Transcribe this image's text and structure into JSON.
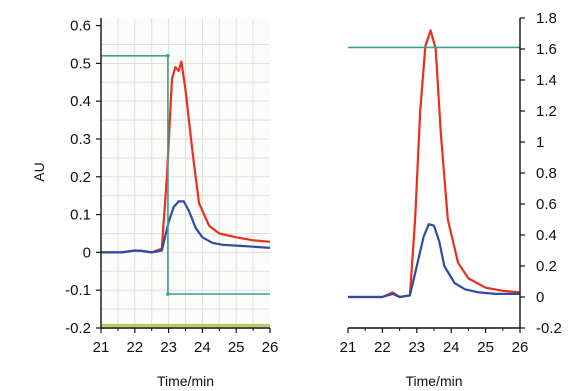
{
  "chart_data": [
    {
      "type": "line",
      "title": "",
      "xlabel": "Time/min",
      "ylabel": "AU",
      "xlim": [
        21,
        26
      ],
      "ylim": [
        -0.2,
        0.62
      ],
      "xticks": [
        "21",
        "22",
        "23",
        "24",
        "25",
        "26"
      ],
      "yticks": [
        "0.6",
        "0.5",
        "0.4",
        "0.3",
        "0.2",
        "0.1",
        "0",
        "-0.1",
        "-0.2"
      ],
      "grid": true,
      "colors": {
        "red": "#e8301c",
        "blue": "#2c4da5",
        "gradient": "#3aa092",
        "baseline": "#b8c85a"
      },
      "series": [
        {
          "color": "red",
          "x": [
            21,
            21.6,
            22,
            22.2,
            22.5,
            22.8,
            22.95,
            23.1,
            23.2,
            23.3,
            23.38,
            23.5,
            23.7,
            23.9,
            24.2,
            24.5,
            25,
            25.5,
            26
          ],
          "y": [
            0,
            0,
            0.005,
            0.004,
            0,
            0.01,
            0.2,
            0.46,
            0.49,
            0.48,
            0.505,
            0.43,
            0.27,
            0.13,
            0.07,
            0.05,
            0.04,
            0.032,
            0.028
          ]
        },
        {
          "color": "blue",
          "x": [
            21,
            21.6,
            22,
            22.2,
            22.5,
            22.8,
            23,
            23.15,
            23.3,
            23.45,
            23.6,
            23.8,
            24,
            24.3,
            24.6,
            25,
            25.5,
            26
          ],
          "y": [
            0,
            0,
            0.005,
            0.004,
            0,
            0.005,
            0.08,
            0.12,
            0.135,
            0.135,
            0.11,
            0.065,
            0.04,
            0.025,
            0.02,
            0.018,
            0.015,
            0.012
          ]
        },
        {
          "color": "gradient",
          "x": [
            21,
            22.98,
            22.98,
            26
          ],
          "y": [
            0.52,
            0.52,
            -0.11,
            -0.11
          ]
        },
        {
          "color": "baseline",
          "x": [
            21,
            26
          ],
          "y": [
            -0.193,
            -0.193
          ]
        }
      ]
    },
    {
      "type": "line",
      "title": "",
      "xlabel": "Time/min",
      "ylabel": "",
      "xlim": [
        21,
        26
      ],
      "ylim": [
        -0.2,
        1.8
      ],
      "y_axis_side": "right",
      "xticks": [
        "21",
        "22",
        "23",
        "24",
        "25",
        "26"
      ],
      "yticks": [
        "1.8",
        "1.6",
        "1.4",
        "1.2",
        "1",
        "0.8",
        "0.6",
        "0.4",
        "0.2",
        "0",
        "-0.2"
      ],
      "grid": false,
      "colors": {
        "red": "#e8301c",
        "blue": "#2c4da5",
        "gradient": "#3aa092"
      },
      "series": [
        {
          "color": "red",
          "x": [
            21,
            22,
            22.3,
            22.5,
            22.8,
            22.95,
            23.1,
            23.25,
            23.4,
            23.55,
            23.7,
            23.9,
            24.2,
            24.5,
            25,
            25.5,
            26
          ],
          "y": [
            0,
            0,
            0.03,
            0,
            0.01,
            0.5,
            1.2,
            1.62,
            1.72,
            1.6,
            1.05,
            0.5,
            0.22,
            0.12,
            0.06,
            0.04,
            0.03
          ]
        },
        {
          "color": "blue",
          "x": [
            21,
            22,
            22.3,
            22.5,
            22.8,
            23,
            23.2,
            23.35,
            23.5,
            23.65,
            23.8,
            24.1,
            24.4,
            24.8,
            25.3,
            26
          ],
          "y": [
            0,
            0,
            0.02,
            0,
            0.01,
            0.2,
            0.39,
            0.47,
            0.46,
            0.36,
            0.2,
            0.09,
            0.05,
            0.03,
            0.02,
            0.02
          ]
        },
        {
          "color": "gradient",
          "x": [
            21,
            26
          ],
          "y": [
            1.61,
            1.61
          ]
        }
      ]
    }
  ]
}
